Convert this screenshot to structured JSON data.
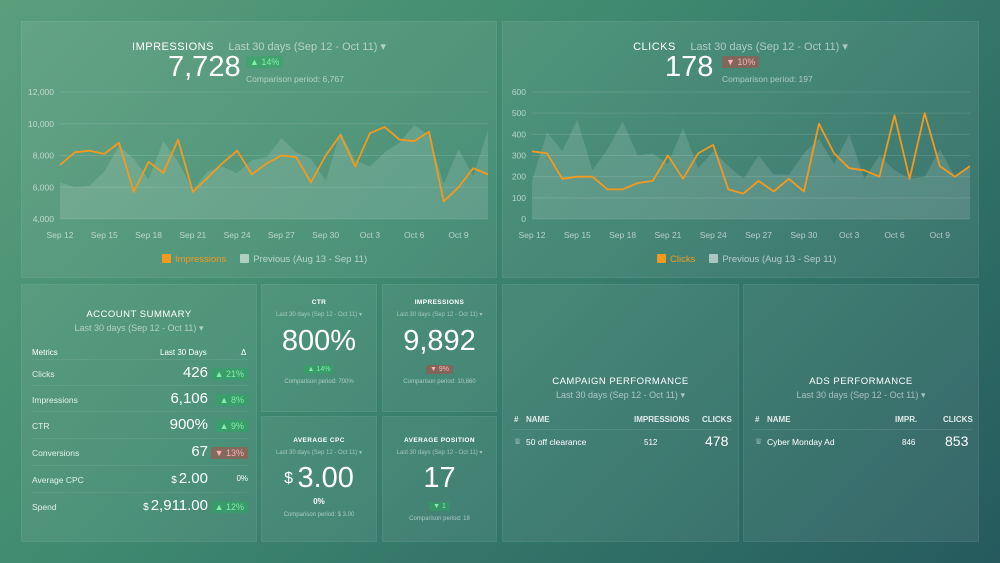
{
  "colors": {
    "orange": "#f39a1e",
    "green_badge": "#7ff0a6",
    "red_badge": "#ffb0b0"
  },
  "impressions": {
    "title": "IMPRESSIONS",
    "period": "Last 30 days (Sep 12 - Oct 11)",
    "value": "7,728",
    "badge": "▲ 14%",
    "comparison": "Comparison period: 6,767",
    "legend_current": "Impressions",
    "legend_previous": "Previous (Aug 13 - Sep 11)"
  },
  "clicks": {
    "title": "CLICKS",
    "period": "Last 30 days (Sep 12 - Oct 11)",
    "value": "178",
    "badge": "▼ 10%",
    "comparison": "Comparison period: 197",
    "legend_current": "Clicks",
    "legend_previous": "Previous (Aug 13 - Sep 11)"
  },
  "chart_data": [
    {
      "type": "line",
      "name": "impressions-chart",
      "x": [
        "Sep 12",
        "Sep 13",
        "Sep 14",
        "Sep 15",
        "Sep 16",
        "Sep 17",
        "Sep 18",
        "Sep 19",
        "Sep 20",
        "Sep 21",
        "Sep 22",
        "Sep 23",
        "Sep 24",
        "Sep 25",
        "Sep 26",
        "Sep 27",
        "Sep 28",
        "Sep 29",
        "Sep 30",
        "Oct 1",
        "Oct 2",
        "Oct 3",
        "Oct 4",
        "Oct 5",
        "Oct 6",
        "Oct 7",
        "Oct 8",
        "Oct 9",
        "Oct 10",
        "Oct 11"
      ],
      "xticks": [
        "Sep 12",
        "Sep 15",
        "Sep 18",
        "Sep 21",
        "Sep 24",
        "Sep 27",
        "Sep 30",
        "Oct 3",
        "Oct 6",
        "Oct 9"
      ],
      "yticks": [
        "4,000",
        "6,000",
        "8,000",
        "10,000",
        "12,000"
      ],
      "ylim": [
        4000,
        12000
      ],
      "series": [
        {
          "name": "Impressions",
          "values": [
            7400,
            8200,
            8300,
            8100,
            8800,
            5700,
            7600,
            6900,
            9000,
            5700,
            6600,
            7500,
            8300,
            6800,
            7500,
            8000,
            7900,
            6300,
            8000,
            9300,
            7300,
            9400,
            9800,
            9000,
            8900,
            9500,
            5100,
            6000,
            7200,
            6800
          ]
        },
        {
          "name": "Previous (Aug 13 - Sep 11)",
          "values": [
            6300,
            6000,
            6100,
            7000,
            8600,
            7800,
            6500,
            8900,
            7600,
            5800,
            7000,
            7300,
            6900,
            7700,
            7900,
            9100,
            8200,
            7800,
            6400,
            9500,
            7700,
            7300,
            8200,
            8800,
            9900,
            9300,
            6200,
            8400,
            6700,
            9600
          ]
        }
      ]
    },
    {
      "type": "line",
      "name": "clicks-chart",
      "x": [
        "Sep 12",
        "Sep 13",
        "Sep 14",
        "Sep 15",
        "Sep 16",
        "Sep 17",
        "Sep 18",
        "Sep 19",
        "Sep 20",
        "Sep 21",
        "Sep 22",
        "Sep 23",
        "Sep 24",
        "Sep 25",
        "Sep 26",
        "Sep 27",
        "Sep 28",
        "Sep 29",
        "Sep 30",
        "Oct 1",
        "Oct 2",
        "Oct 3",
        "Oct 4",
        "Oct 5",
        "Oct 6",
        "Oct 7",
        "Oct 8",
        "Oct 9",
        "Oct 10",
        "Oct 11"
      ],
      "xticks": [
        "Sep 12",
        "Sep 15",
        "Sep 18",
        "Sep 21",
        "Sep 24",
        "Sep 27",
        "Sep 30",
        "Oct 3",
        "Oct 6",
        "Oct 9"
      ],
      "yticks": [
        "0",
        "100",
        "200",
        "300",
        "400",
        "500",
        "600"
      ],
      "ylim": [
        0,
        600
      ],
      "series": [
        {
          "name": "Clicks",
          "values": [
            320,
            310,
            190,
            200,
            200,
            140,
            140,
            170,
            180,
            300,
            190,
            310,
            350,
            140,
            120,
            180,
            130,
            190,
            130,
            450,
            310,
            240,
            230,
            200,
            490,
            190,
            500,
            250,
            200,
            250
          ]
        },
        {
          "name": "Previous (Aug 13 - Sep 11)",
          "values": [
            180,
            410,
            320,
            470,
            230,
            330,
            460,
            300,
            310,
            260,
            430,
            240,
            320,
            250,
            190,
            300,
            210,
            210,
            310,
            380,
            260,
            400,
            190,
            300,
            230,
            190,
            200,
            330,
            200,
            250
          ]
        }
      ]
    }
  ],
  "account_summary": {
    "title": "ACCOUNT SUMMARY",
    "period": "Last 30 days (Sep 12 - Oct 11)",
    "col_metrics": "Metrics",
    "col_period": "Last 30 Days",
    "col_delta": "Δ",
    "rows": [
      {
        "metric": "Clicks",
        "value": "426",
        "delta": "▲ 21%",
        "dir": "up"
      },
      {
        "metric": "Impressions",
        "value": "6,106",
        "delta": "▲ 8%",
        "dir": "up"
      },
      {
        "metric": "CTR",
        "value": "900%",
        "delta": "▲ 9%",
        "dir": "up"
      },
      {
        "metric": "Conversions",
        "value": "67",
        "delta": "▼ 13%",
        "dir": "down"
      },
      {
        "metric": "Average CPC",
        "value": "2.00",
        "prefix": "$",
        "delta": "0%",
        "dir": "flat"
      },
      {
        "metric": "Spend",
        "value": "2,911.00",
        "prefix": "$",
        "delta": "▲ 12%",
        "dir": "up"
      }
    ]
  },
  "ctr": {
    "title": "CTR",
    "period": "Last 30 days (Sep 12 - Oct 11)",
    "value": "800%",
    "badge": "▲ 14%",
    "comparison": "Comparison period: 700%"
  },
  "impr_mini": {
    "title": "IMPRESSIONS",
    "period": "Last 30 days (Sep 12 - Oct 11)",
    "value": "9,892",
    "badge": "▼ 9%",
    "comparison": "Comparison period: 10,860"
  },
  "avg_cpc": {
    "title": "AVERAGE CPC",
    "period": "Last 30 days (Sep 12 - Oct 11)",
    "currency": "$",
    "value": "3.00",
    "badge": "0%",
    "comparison": "Comparison period: $ 3.00"
  },
  "avg_position": {
    "title": "AVERAGE POSITION",
    "period": "Last 30 days (Sep 12 - Oct 11)",
    "value": "17",
    "badge": "▼ 1",
    "comparison": "Comparison period: 18"
  },
  "campaign": {
    "title": "CAMPAIGN PERFORMANCE",
    "period": "Last 30 days (Sep 12 - Oct 11)",
    "h_num": "#",
    "h_name": "NAME",
    "h_impr": "IMPRESSIONS",
    "h_clicks": "CLICKS",
    "row": {
      "name": "50 off clearance",
      "impressions": "512",
      "clicks": "478"
    }
  },
  "ads": {
    "title": "ADS PERFORMANCE",
    "period": "Last 30 days (Sep 12 - Oct 11)",
    "h_num": "#",
    "h_name": "NAME",
    "h_impr": "IMPR.",
    "h_clicks": "CLICKS",
    "row": {
      "name": "Cyber Monday Ad",
      "impressions": "846",
      "clicks": "853"
    }
  }
}
